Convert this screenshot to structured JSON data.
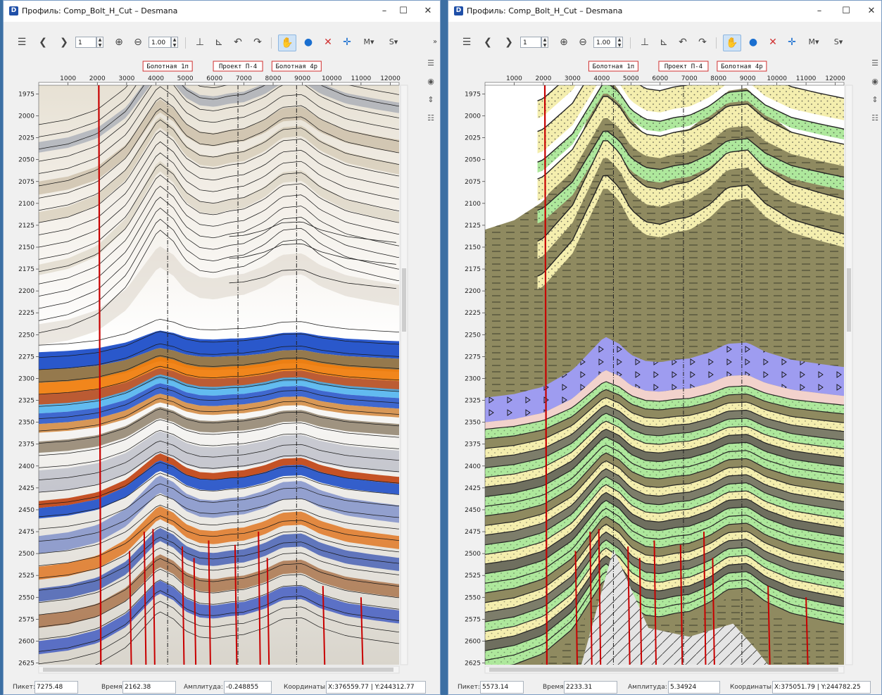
{
  "windows": [
    {
      "title": "Профиль: Comp_Bolt_H_Cut – Desmana",
      "toolbar": {
        "page_value": "1",
        "zoom_value": "1.00"
      },
      "wells": [
        {
          "label": "Болотная 1п"
        },
        {
          "label": "Проект П-4"
        },
        {
          "label": "Болотная 4р"
        }
      ],
      "status": [
        {
          "label": "Пикет:",
          "value": "7275.48"
        },
        {
          "label": "Время:",
          "value": "2162.38"
        },
        {
          "label": "Амплитуда:",
          "value": "-0.248855"
        },
        {
          "label": "Координаты:",
          "value": "X:376559.77 | Y:244312.77"
        }
      ]
    },
    {
      "title": "Профиль: Comp_Bolt_H_Cut – Desmana",
      "toolbar": {
        "page_value": "1",
        "zoom_value": "1.00"
      },
      "wells": [
        {
          "label": "Болотная 1п"
        },
        {
          "label": "Проект П-4"
        },
        {
          "label": "Болотная 4р"
        }
      ],
      "status": [
        {
          "label": "Пикет:",
          "value": "5573.14"
        },
        {
          "label": "Время:",
          "value": "2233.31"
        },
        {
          "label": "Амплитуда:",
          "value": "5.34924"
        },
        {
          "label": "Координаты:",
          "value": "X:375051.79 | Y:244782.25"
        }
      ]
    }
  ],
  "axes": {
    "x_ticks": [
      "1000",
      "2000",
      "3000",
      "4000",
      "5000",
      "6000",
      "7000",
      "8000",
      "9000",
      "10000",
      "11000",
      "12000"
    ],
    "y_ticks": [
      "1975",
      "2000",
      "2025",
      "2050",
      "2075",
      "2100",
      "2125",
      "2150",
      "2175",
      "2200",
      "2225",
      "2250",
      "2275",
      "2300",
      "2325",
      "2350",
      "2375",
      "2400",
      "2425",
      "2450",
      "2475",
      "2500",
      "2525",
      "2550",
      "2575",
      "2600",
      "2625"
    ],
    "x_range": [
      0,
      12300
    ],
    "y_range": [
      1965,
      2627
    ]
  },
  "colors": {
    "fault_red": "#c80000",
    "seismic_blue": "#1f4fc8",
    "seismic_orange": "#f08010",
    "seismic_brown": "#8a6a3a",
    "shale_olive": "#8f8a60",
    "sand_yellow": "#f4eeae",
    "green": "#aee89c",
    "violet": "#9e9cf0",
    "pink": "#f2d2cc",
    "basement_grey": "#e4e4e4"
  }
}
